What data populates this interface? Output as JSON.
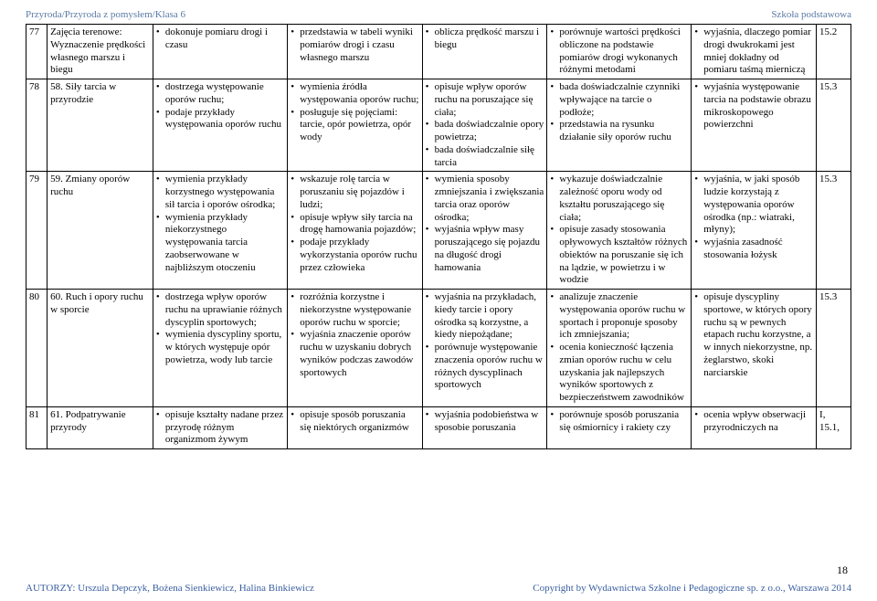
{
  "header": {
    "left": "Przyroda/Przyroda z pomysłem/Klasa 6",
    "right": "Szkoła podstawowa"
  },
  "rows": [
    {
      "num": "77",
      "topic": "Zajęcia terenowe: Wyznaczenie prędkości własnego marszu i biegu",
      "a": [
        "dokonuje pomiaru drogi i czasu"
      ],
      "b": [
        "przedstawia w tabeli wyniki pomiarów drogi i czasu własnego marszu"
      ],
      "c": [
        "oblicza prędkość marszu i biegu"
      ],
      "d": [
        "porównuje wartości prędkości obliczone na podstawie pomiarów drogi wykonanych różnymi metodami"
      ],
      "e": [
        "wyjaśnia, dlaczego pomiar drogi dwukrokami jest mniej dokładny od pomiaru taśmą mierniczą"
      ],
      "f": "15.2"
    },
    {
      "num": "78",
      "topic": "58. Siły tarcia w przyrodzie",
      "a": [
        "dostrzega występowanie oporów ruchu;",
        "podaje przykłady występowania oporów ruchu"
      ],
      "b": [
        "wymienia źródła występowania oporów ruchu;",
        "posługuje się pojęciami: tarcie, opór powietrza, opór wody"
      ],
      "c": [
        "opisuje wpływ oporów ruchu na poruszające się ciała;",
        "bada doświadczalnie opory powietrza;",
        "bada doświadczalnie siłę tarcia"
      ],
      "d": [
        "bada doświadczalnie czynniki wpływające na tarcie o podłoże;",
        "przedstawia na rysunku działanie siły oporów ruchu"
      ],
      "e": [
        "wyjaśnia występowanie tarcia na podstawie obrazu mikroskopowego powierzchni"
      ],
      "f": "15.3"
    },
    {
      "num": "79",
      "topic": "59. Zmiany oporów ruchu",
      "a": [
        "wymienia przykłady korzystnego występowania sił tarcia i oporów ośrodka;",
        "wymienia przykłady niekorzystnego występowania tarcia zaobserwowane w najbliższym otoczeniu"
      ],
      "b": [
        "wskazuje rolę tarcia w poruszaniu się pojazdów i ludzi;",
        "opisuje wpływ siły tarcia na drogę hamowania pojazdów;",
        "podaje przykłady wykorzystania oporów ruchu przez człowieka"
      ],
      "c": [
        "wymienia sposoby zmniejszania i zwiększania tarcia oraz oporów ośrodka;",
        "wyjaśnia wpływ masy poruszającego się pojazdu na długość drogi hamowania"
      ],
      "d": [
        "wykazuje doświadczalnie zależność oporu wody od kształtu poruszającego się ciała;",
        "opisuje zasady stosowania opływowych kształtów różnych obiektów na poruszanie się ich na lądzie, w powietrzu i w wodzie"
      ],
      "e": [
        "wyjaśnia, w jaki sposób ludzie korzystają z występowania oporów ośrodka (np.: wiatraki, młyny);",
        "wyjaśnia zasadność stosowania łożysk"
      ],
      "f": "15.3"
    },
    {
      "num": "80",
      "topic": "60. Ruch i opory ruchu w sporcie",
      "a": [
        "dostrzega wpływ oporów ruchu na uprawianie różnych dyscyplin sportowych;",
        "wymienia dyscypliny sportu, w których występuje opór powietrza, wody lub tarcie"
      ],
      "b": [
        "rozróżnia korzystne i niekorzystne występowanie oporów ruchu w sporcie;",
        "wyjaśnia znaczenie oporów ruchu w uzyskaniu dobrych wyników podczas zawodów sportowych"
      ],
      "c": [
        "wyjaśnia na przykładach, kiedy tarcie i opory ośrodka są korzystne, a kiedy niepożądane;",
        "porównuje występowanie znaczenia oporów ruchu w różnych dyscyplinach sportowych"
      ],
      "d": [
        "analizuje znaczenie występowania oporów ruchu w sportach i proponuje sposoby ich zmniejszania;",
        "ocenia konieczność łączenia zmian oporów ruchu w celu uzyskania jak najlepszych wyników sportowych z bezpieczeństwem zawodników"
      ],
      "e": [
        "opisuje dyscypliny sportowe, w których opory ruchu są w pewnych etapach ruchu korzystne, a w innych niekorzystne, np. żeglarstwo, skoki narciarskie"
      ],
      "f": "15.3"
    },
    {
      "num": "81",
      "topic": "61. Podpatrywanie przyrody",
      "a": [
        "opisuje kształty nadane przez przyrodę różnym organizmom żywym"
      ],
      "b": [
        "opisuje sposób poruszania się niektórych organizmów"
      ],
      "c": [
        "wyjaśnia podobieństwa w sposobie poruszania"
      ],
      "d": [
        "porównuje sposób poruszania się ośmiornicy i rakiety czy"
      ],
      "e": [
        "ocenia wpływ obserwacji przyrodniczych na"
      ],
      "f": "I, 15.1,"
    }
  ],
  "footer": {
    "left": "AUTORZY: Urszula Depczyk, Bożena Sienkiewicz, Halina Binkiewicz",
    "right": "Copyright by Wydawnictwa Szkolne i Pedagogiczne sp. z o.o., Warszawa 2014",
    "page": "18"
  }
}
